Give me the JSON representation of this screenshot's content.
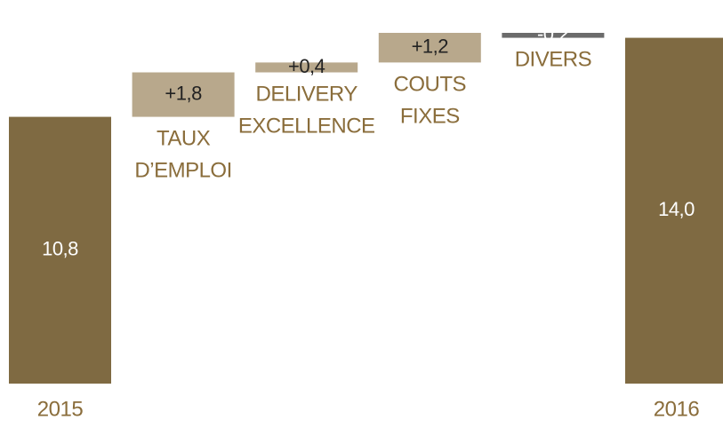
{
  "chart_data": {
    "type": "waterfall",
    "categories": [
      "2015",
      "TAUX D’EMPLOI",
      "DELIVERY EXCELLENCE",
      "COUTS FIXES",
      "DIVERS",
      "2016"
    ],
    "values": [
      10.8,
      1.8,
      0.4,
      1.2,
      -0.2,
      14.0
    ],
    "value_labels": [
      "10,8",
      "+1,8",
      "+0,4",
      "+1,2",
      "-0,2",
      "14,0"
    ],
    "measure": [
      "total",
      "relative",
      "relative",
      "relative",
      "relative",
      "total"
    ],
    "colors": {
      "total": "#7f6a42",
      "increase": "#b8a88c",
      "decrease": "#6b6b6b"
    },
    "label_colors": {
      "total": "#ffffff",
      "increase": "#222222",
      "decrease": "#ffffff"
    }
  }
}
